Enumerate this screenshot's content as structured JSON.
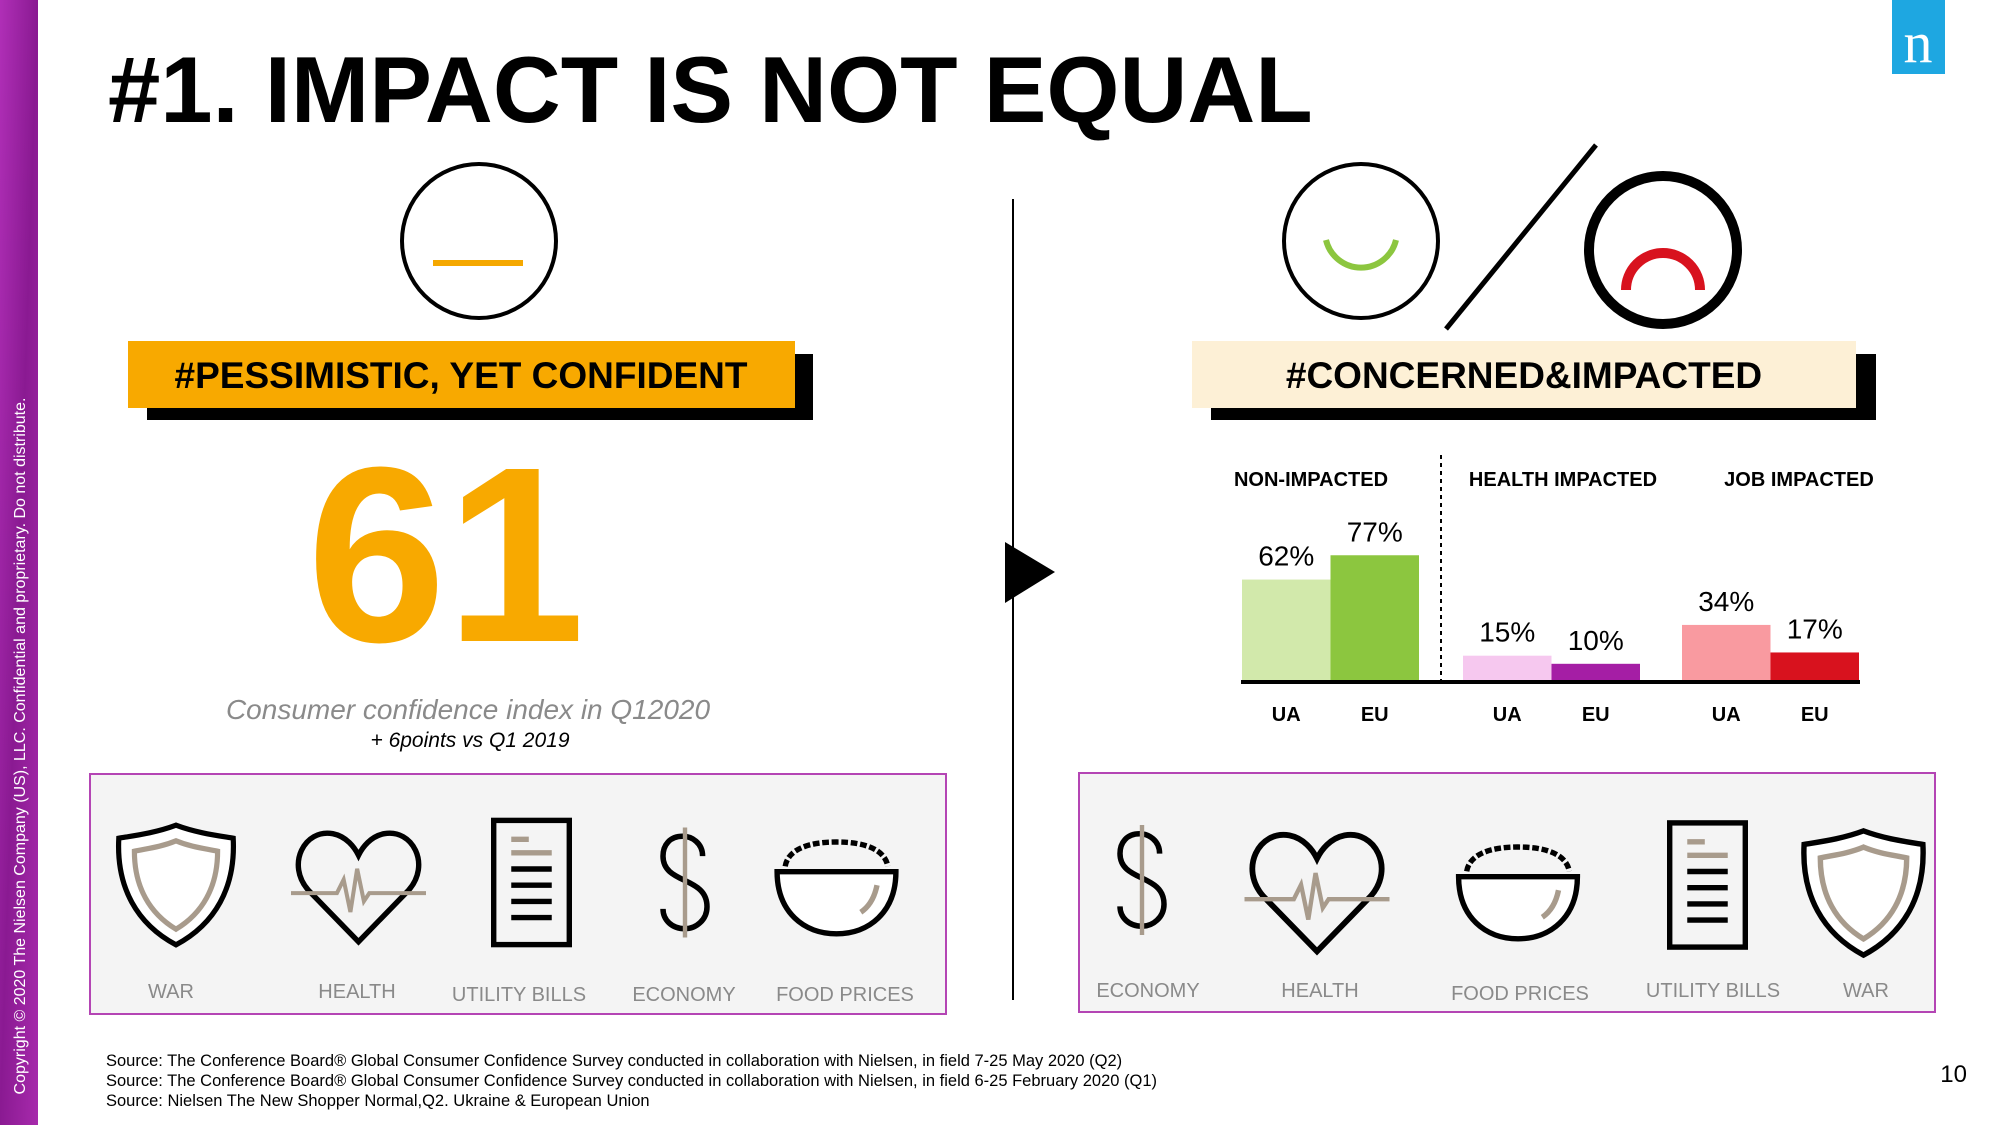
{
  "title": "#1. IMPACT IS NOT EQUAL",
  "logo": "n",
  "left": {
    "tag": "#PESSIMISTIC, YET CONFIDENT",
    "index": "61",
    "caption": "Consumer confidence index in Q12020",
    "change": "+ 6points vs Q1 2019",
    "concerns": [
      "WAR",
      "HEALTH",
      "UTILITY BILLS",
      "ECONOMY",
      "FOOD PRICES"
    ]
  },
  "right": {
    "tag": "#CONCERNED&IMPACTED",
    "concerns": [
      "ECONOMY",
      "HEALTH",
      "FOOD PRICES",
      "UTILITY BILLS",
      "WAR"
    ]
  },
  "chart_data": {
    "type": "grouped-bar",
    "groups": [
      {
        "name": "NON-IMPACTED",
        "categories": [
          "UA",
          "EU"
        ],
        "values": [
          62,
          77
        ],
        "value_labels": [
          "62%",
          "77%"
        ],
        "colors": [
          "#d2e9ab",
          "#8cc63f"
        ]
      },
      {
        "name": "HEALTH IMPACTED",
        "categories": [
          "UA",
          "EU"
        ],
        "values": [
          15,
          10
        ],
        "value_labels": [
          "15%",
          "10%"
        ],
        "colors": [
          "#f6c8ef",
          "#a51ea5"
        ]
      },
      {
        "name": "JOB IMPACTED",
        "categories": [
          "UA",
          "EU"
        ],
        "values": [
          34,
          17
        ],
        "value_labels": [
          "34%",
          "17%"
        ],
        "colors": [
          "#f99aa0",
          "#d8121e"
        ]
      }
    ]
  },
  "sources": [
    "Source: The Conference Board® Global Consumer Confidence Survey conducted in collaboration with Nielsen, in field  7-25 May 2020 (Q2)",
    "Source: The Conference Board® Global Consumer Confidence Survey conducted in collaboration with Nielsen, in field 6-25 February 2020 (Q1)",
    "Source: Nielsen The New Shopper Normal,Q2. Ukraine & European Union"
  ],
  "page_number": "10",
  "copyright": "Copyright © 2020 The Nielsen Company (US), LLC. Confidential and proprietary. Do not distribute."
}
